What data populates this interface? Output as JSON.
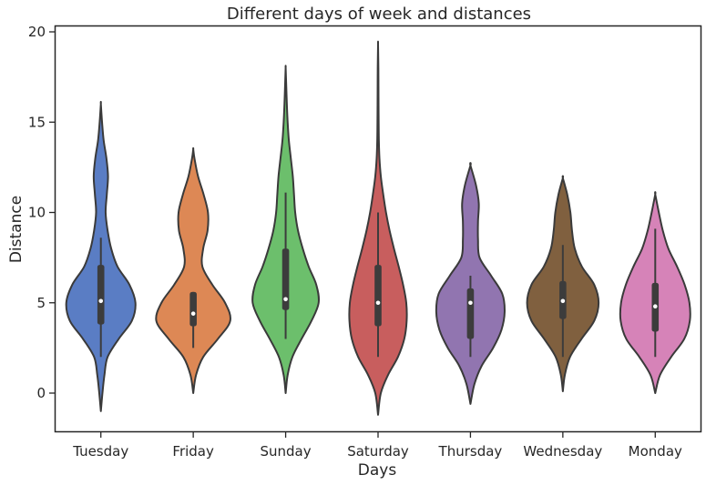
{
  "chart_data": {
    "type": "violin",
    "title": "Different days of week and distances",
    "xlabel": "Days",
    "ylabel": "Distance",
    "ylim": [
      -2.2,
      20.5
    ],
    "yticks": [
      0,
      5,
      10,
      15,
      20
    ],
    "grid": false,
    "categories": [
      "Tuesday",
      "Friday",
      "Sunday",
      "Saturday",
      "Thursday",
      "Wednesday",
      "Monday"
    ],
    "colors": [
      "#5a7dc4",
      "#dd8855",
      "#6cbf6c",
      "#c85e5e",
      "#9175b0",
      "#80603f",
      "#d683b8"
    ],
    "violins": [
      {
        "category": "Tuesday",
        "min": 2.0,
        "q1": 3.8,
        "median": 5.1,
        "q3": 7.1,
        "max": 8.6,
        "kde_min": -1.0,
        "kde_max": 16.0,
        "density": [
          [
            -1.0,
            0.0
          ],
          [
            0.0,
            0.04
          ],
          [
            1.0,
            0.09
          ],
          [
            2.0,
            0.17
          ],
          [
            3.0,
            0.45
          ],
          [
            4.0,
            0.78
          ],
          [
            5.0,
            0.87
          ],
          [
            6.0,
            0.72
          ],
          [
            7.0,
            0.42
          ],
          [
            8.0,
            0.26
          ],
          [
            9.0,
            0.17
          ],
          [
            10.0,
            0.12
          ],
          [
            11.0,
            0.15
          ],
          [
            12.0,
            0.18
          ],
          [
            13.0,
            0.14
          ],
          [
            14.0,
            0.07
          ],
          [
            15.0,
            0.03
          ],
          [
            16.0,
            0.0
          ]
        ]
      },
      {
        "category": "Friday",
        "min": 2.5,
        "q1": 3.7,
        "median": 4.4,
        "q3": 5.6,
        "max": 5.6,
        "kde_min": 0.0,
        "kde_max": 13.5,
        "density": [
          [
            0.0,
            0.0
          ],
          [
            1.0,
            0.07
          ],
          [
            2.0,
            0.25
          ],
          [
            3.0,
            0.62
          ],
          [
            4.0,
            0.93
          ],
          [
            5.0,
            0.8
          ],
          [
            6.0,
            0.48
          ],
          [
            7.0,
            0.23
          ],
          [
            8.0,
            0.25
          ],
          [
            9.0,
            0.36
          ],
          [
            10.0,
            0.37
          ],
          [
            11.0,
            0.26
          ],
          [
            12.0,
            0.12
          ],
          [
            13.0,
            0.03
          ],
          [
            13.5,
            0.0
          ]
        ]
      },
      {
        "category": "Sunday",
        "min": 3.0,
        "q1": 4.6,
        "median": 5.2,
        "q3": 8.0,
        "max": 11.1,
        "kde_min": 0.0,
        "kde_max": 18.0,
        "density": [
          [
            0.0,
            0.0
          ],
          [
            1.0,
            0.05
          ],
          [
            2.0,
            0.17
          ],
          [
            3.0,
            0.4
          ],
          [
            4.0,
            0.65
          ],
          [
            5.0,
            0.83
          ],
          [
            6.0,
            0.77
          ],
          [
            7.0,
            0.58
          ],
          [
            8.0,
            0.43
          ],
          [
            9.0,
            0.31
          ],
          [
            10.0,
            0.24
          ],
          [
            11.0,
            0.21
          ],
          [
            12.0,
            0.18
          ],
          [
            13.0,
            0.13
          ],
          [
            14.0,
            0.08
          ],
          [
            15.0,
            0.05
          ],
          [
            16.0,
            0.03
          ],
          [
            17.0,
            0.015
          ],
          [
            18.0,
            0.0
          ]
        ]
      },
      {
        "category": "Saturday",
        "min": 2.0,
        "q1": 3.7,
        "median": 5.0,
        "q3": 7.1,
        "max": 10.0,
        "kde_min": -1.2,
        "kde_max": 19.3,
        "density": [
          [
            -1.2,
            0.0
          ],
          [
            0.0,
            0.07
          ],
          [
            1.0,
            0.25
          ],
          [
            2.0,
            0.5
          ],
          [
            3.0,
            0.66
          ],
          [
            4.0,
            0.72
          ],
          [
            5.0,
            0.71
          ],
          [
            6.0,
            0.63
          ],
          [
            7.0,
            0.52
          ],
          [
            8.0,
            0.4
          ],
          [
            9.0,
            0.29
          ],
          [
            10.0,
            0.2
          ],
          [
            11.0,
            0.13
          ],
          [
            12.0,
            0.07
          ],
          [
            13.0,
            0.035
          ],
          [
            14.0,
            0.02
          ],
          [
            15.0,
            0.015
          ],
          [
            16.0,
            0.012
          ],
          [
            17.0,
            0.01
          ],
          [
            18.0,
            0.008
          ],
          [
            19.3,
            0.0
          ]
        ]
      },
      {
        "category": "Thursday",
        "min": 2.0,
        "q1": 3.0,
        "median": 5.0,
        "q3": 5.8,
        "max": 6.5,
        "kde_min": -0.6,
        "kde_max": 12.6,
        "density": [
          [
            -0.6,
            0.0
          ],
          [
            0.5,
            0.1
          ],
          [
            1.5,
            0.28
          ],
          [
            2.5,
            0.57
          ],
          [
            3.5,
            0.78
          ],
          [
            4.5,
            0.86
          ],
          [
            5.5,
            0.8
          ],
          [
            6.5,
            0.52
          ],
          [
            7.5,
            0.23
          ],
          [
            8.5,
            0.19
          ],
          [
            9.5,
            0.19
          ],
          [
            10.5,
            0.21
          ],
          [
            11.5,
            0.14
          ],
          [
            12.6,
            0.0
          ]
        ]
      },
      {
        "category": "Wednesday",
        "min": 2.0,
        "q1": 4.1,
        "median": 5.1,
        "q3": 6.2,
        "max": 8.2,
        "kde_min": 0.1,
        "kde_max": 11.9,
        "density": [
          [
            0.1,
            0.0
          ],
          [
            1.0,
            0.05
          ],
          [
            2.0,
            0.18
          ],
          [
            3.0,
            0.47
          ],
          [
            4.0,
            0.79
          ],
          [
            5.0,
            0.9
          ],
          [
            6.0,
            0.79
          ],
          [
            7.0,
            0.48
          ],
          [
            8.0,
            0.3
          ],
          [
            9.0,
            0.23
          ],
          [
            10.0,
            0.19
          ],
          [
            11.0,
            0.11
          ],
          [
            11.9,
            0.0
          ]
        ]
      },
      {
        "category": "Monday",
        "min": 2.0,
        "q1": 3.4,
        "median": 4.8,
        "q3": 6.1,
        "max": 9.1,
        "kde_min": 0.0,
        "kde_max": 11.0,
        "density": [
          [
            0.0,
            0.0
          ],
          [
            1.0,
            0.12
          ],
          [
            2.0,
            0.4
          ],
          [
            3.0,
            0.73
          ],
          [
            4.0,
            0.87
          ],
          [
            5.0,
            0.86
          ],
          [
            6.0,
            0.74
          ],
          [
            7.0,
            0.55
          ],
          [
            8.0,
            0.33
          ],
          [
            9.0,
            0.19
          ],
          [
            10.0,
            0.09
          ],
          [
            11.0,
            0.0
          ]
        ]
      }
    ]
  }
}
